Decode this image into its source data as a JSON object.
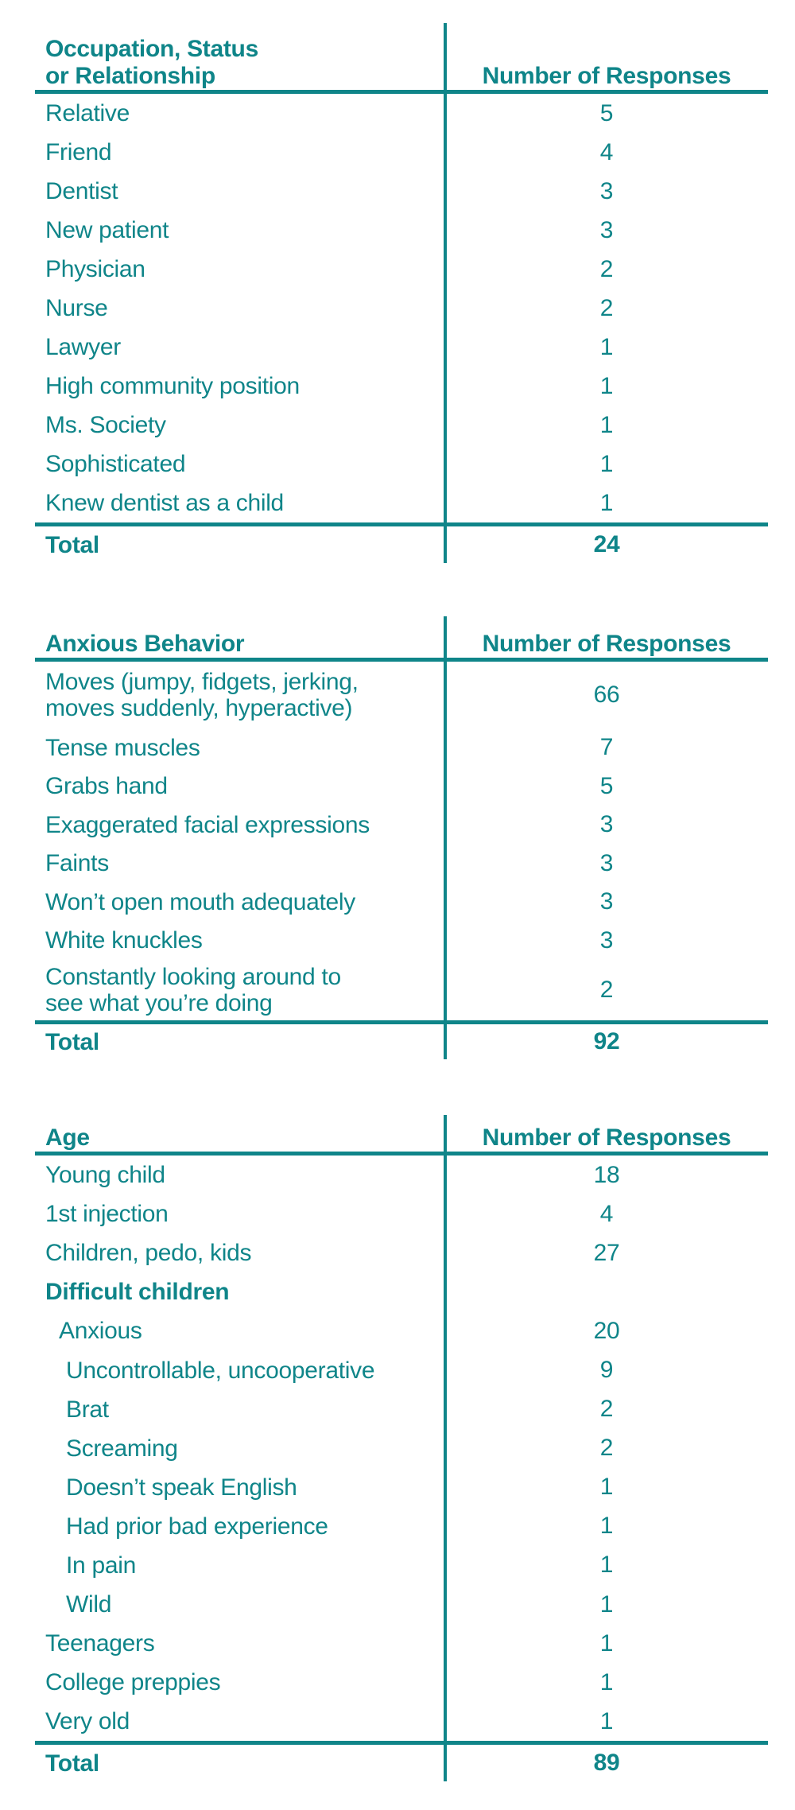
{
  "accent_color": "#0f8589",
  "tables": [
    {
      "col1_header": "Occupation, Status\nor Relationship",
      "col2_header": "Number of Responses",
      "rows": [
        {
          "label": "Relative",
          "value": "5"
        },
        {
          "label": "Friend",
          "value": "4"
        },
        {
          "label": "Dentist",
          "value": "3"
        },
        {
          "label": "New patient",
          "value": "3"
        },
        {
          "label": "Physician",
          "value": "2"
        },
        {
          "label": "Nurse",
          "value": "2"
        },
        {
          "label": "Lawyer",
          "value": "1"
        },
        {
          "label": "High community position",
          "value": "1"
        },
        {
          "label": "Ms. Society",
          "value": "1"
        },
        {
          "label": "Sophisticated",
          "value": "1"
        },
        {
          "label": "Knew dentist as a child",
          "value": "1"
        }
      ],
      "total_label": "Total",
      "total_value": "24"
    },
    {
      "col1_header": "Anxious Behavior",
      "col2_header": "Number of Responses",
      "rows": [
        {
          "label": "Moves (jumpy, fidgets, jerking,\nmoves suddenly, hyperactive)",
          "value": "66"
        },
        {
          "label": "Tense muscles",
          "value": "7"
        },
        {
          "label": "Grabs hand",
          "value": "5"
        },
        {
          "label": "Exaggerated facial expressions",
          "value": "3"
        },
        {
          "label": "Faints",
          "value": "3"
        },
        {
          "label": "Won’t open mouth adequately",
          "value": "3"
        },
        {
          "label": "White knuckles",
          "value": "3"
        },
        {
          "label": "Constantly looking around to\nsee what you’re doing",
          "value": "2"
        }
      ],
      "total_label": "Total",
      "total_value": "92"
    },
    {
      "col1_header": "Age",
      "col2_header": "Number of Responses",
      "rows": [
        {
          "label": "Young child",
          "value": "18"
        },
        {
          "label": "1st injection",
          "value": "4"
        },
        {
          "label": "Children, pedo, kids",
          "value": "27"
        },
        {
          "label": "Difficult children",
          "value": ""
        },
        {
          "label": "Anxious",
          "value": "20"
        },
        {
          "label": "Uncontrollable, uncooperative",
          "value": "9"
        },
        {
          "label": "Brat",
          "value": "2"
        },
        {
          "label": "Screaming",
          "value": "2"
        },
        {
          "label": "Doesn’t speak English",
          "value": "1"
        },
        {
          "label": "Had prior bad experience",
          "value": "1"
        },
        {
          "label": "In pain",
          "value": "1"
        },
        {
          "label": "Wild",
          "value": "1"
        },
        {
          "label": "Teenagers",
          "value": "1"
        },
        {
          "label": "College preppies",
          "value": "1"
        },
        {
          "label": "Very old",
          "value": "1"
        }
      ],
      "total_label": "Total",
      "total_value": "89"
    }
  ]
}
